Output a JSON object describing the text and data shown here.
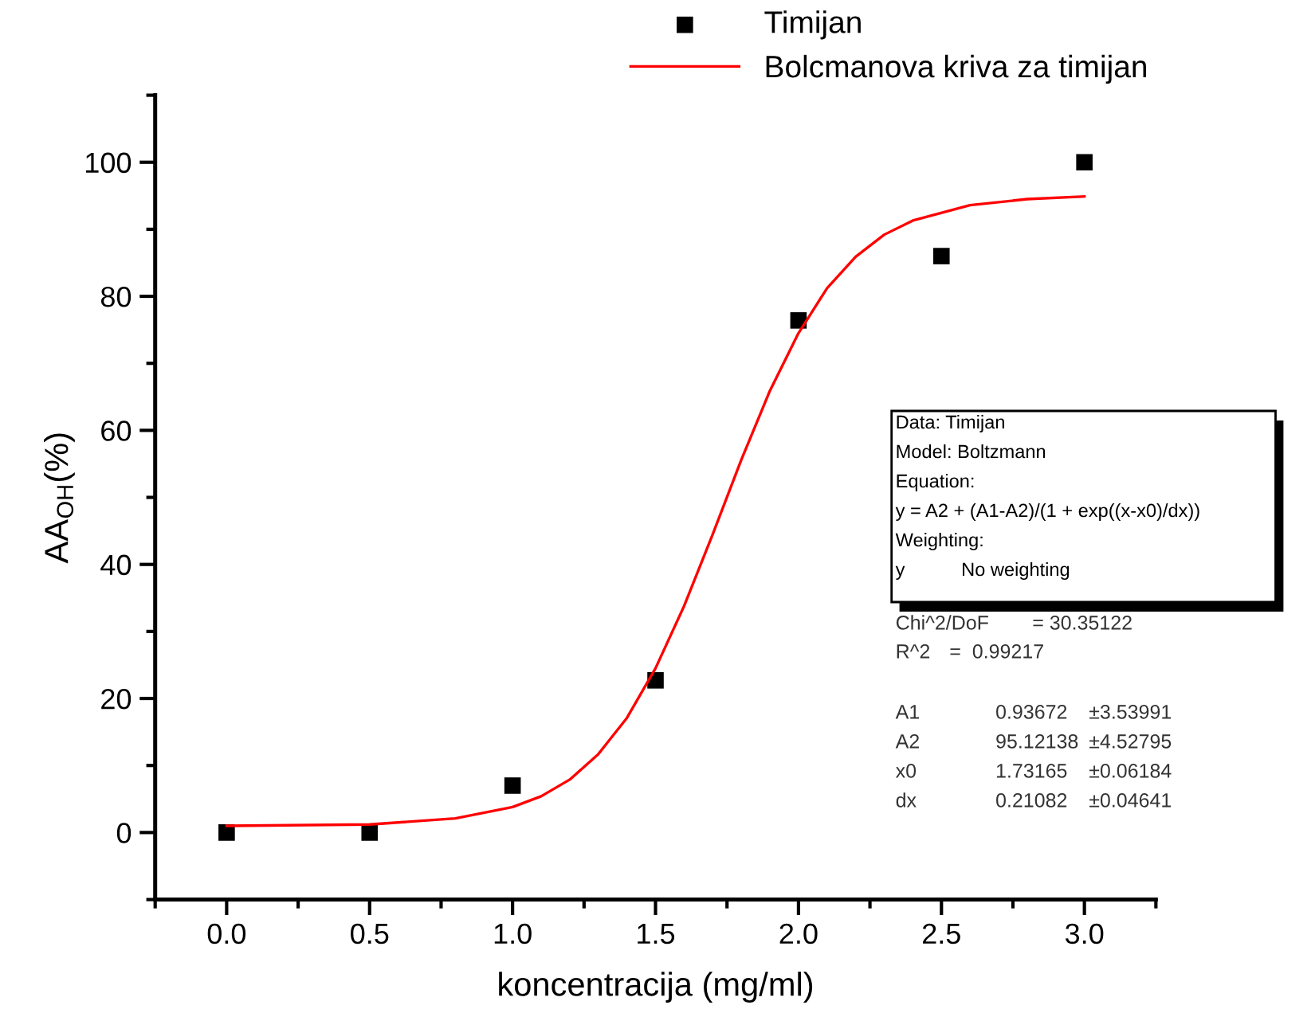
{
  "chart_data": {
    "type": "scatter",
    "xlabel": "koncentracija (mg/ml)",
    "ylabel": "AA$_{OH}$(%)",
    "xlim": [
      -0.25,
      3.25
    ],
    "xticks": [
      {
        "value": 0,
        "label": "0.0"
      },
      {
        "value": 0.5,
        "label": "0.5"
      },
      {
        "value": 1,
        "label": "1.0"
      },
      {
        "value": 1.5,
        "label": "1.5"
      },
      {
        "value": 2,
        "label": "2.0"
      },
      {
        "value": 2.5,
        "label": "2.5"
      },
      {
        "value": 3,
        "label": "3.0"
      }
    ],
    "ylim": [
      -10,
      110
    ],
    "yticks": [
      0,
      20,
      40,
      60,
      80,
      100
    ],
    "grid": false,
    "legend": "top right",
    "series": [
      {
        "name": "Timijan",
        "marker": "square",
        "color": "#000000",
        "x": [
          0,
          0.5,
          1,
          1.5,
          2,
          2.5,
          3
        ],
        "values": [
          0,
          0,
          7,
          22.7,
          76.4,
          86,
          100
        ]
      },
      {
        "name": "Bolcmanova kriva za timijan",
        "type": "line",
        "marker": "none",
        "line_style": "solid",
        "color": "#ff0000",
        "x": [
          0,
          0.5,
          0.8,
          1.0,
          1.1,
          1.2,
          1.3,
          1.4,
          1.5,
          1.6,
          1.7,
          1.8,
          1.9,
          2.0,
          2.1,
          2.2,
          2.3,
          2.4,
          2.6,
          2.8,
          3.0
        ],
        "values": [
          1.0,
          1.2,
          2.1,
          3.8,
          5.4,
          7.9,
          11.7,
          17.1,
          24.5,
          33.8,
          44.5,
          55.6,
          65.9,
          74.5,
          81.2,
          85.9,
          89.2,
          91.3,
          93.6,
          94.5,
          94.9
        ]
      }
    ],
    "annotations": [
      "Data: Timijan\nModel: Boltzmann\nEquation:\ny = A2 + (A1-A2)/(1 + exp((x-x0)/dx))\nWeighting:\ny\tNo weighting",
      "Chi^2/DoF\t= 30.35122",
      "R^2\t=  0.99217",
      "A1\t0.93672\t±3.53991",
      "A2\t95.12138\t±4.52795",
      "x0\t1.73165\t±0.06184",
      "dx\t0.21082\t±0.04641"
    ]
  }
}
